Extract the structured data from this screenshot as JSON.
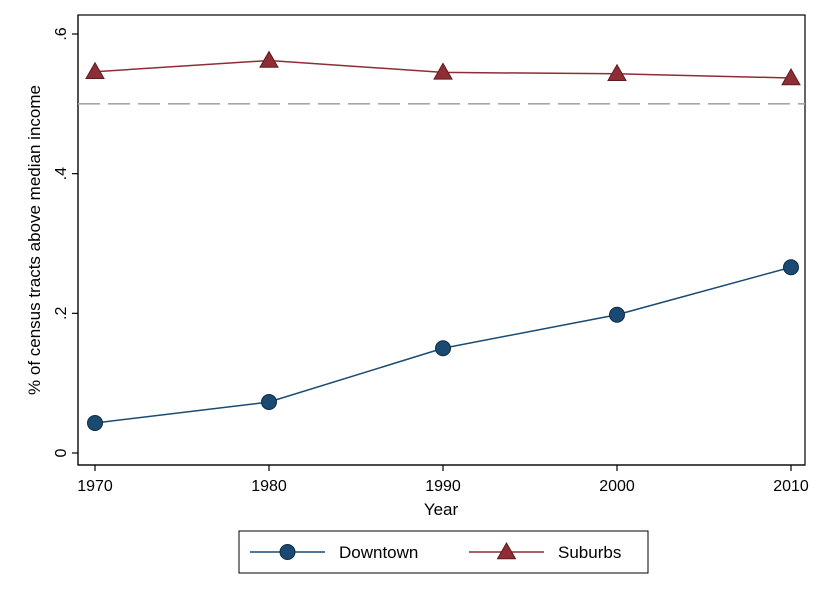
{
  "chart_data": {
    "type": "line",
    "x": [
      1970,
      1980,
      1990,
      2000,
      2010
    ],
    "xticks": [
      "1970",
      "1980",
      "1990",
      "2000",
      "2010"
    ],
    "yticks": [
      {
        "value": 0,
        "label": "0"
      },
      {
        "value": 0.2,
        "label": ".2"
      },
      {
        "value": 0.4,
        "label": ".4"
      },
      {
        "value": 0.6,
        "label": ".6"
      }
    ],
    "xlabel": "Year",
    "ylabel": "% of census tracts above median income",
    "xlim": [
      1970,
      2010
    ],
    "ylim": [
      0,
      0.6
    ],
    "reference_line": {
      "y": 0.5,
      "style": "dashed",
      "color": "#a6a6a6"
    },
    "grid": false,
    "legend_position": "bottom",
    "series": [
      {
        "name": "Downtown",
        "marker": "circle",
        "color": "#1a4a72",
        "values": [
          0.043,
          0.073,
          0.15,
          0.198,
          0.266
        ]
      },
      {
        "name": "Suburbs",
        "marker": "triangle",
        "color": "#8f2d35",
        "values": [
          0.546,
          0.562,
          0.545,
          0.543,
          0.537
        ]
      }
    ]
  }
}
